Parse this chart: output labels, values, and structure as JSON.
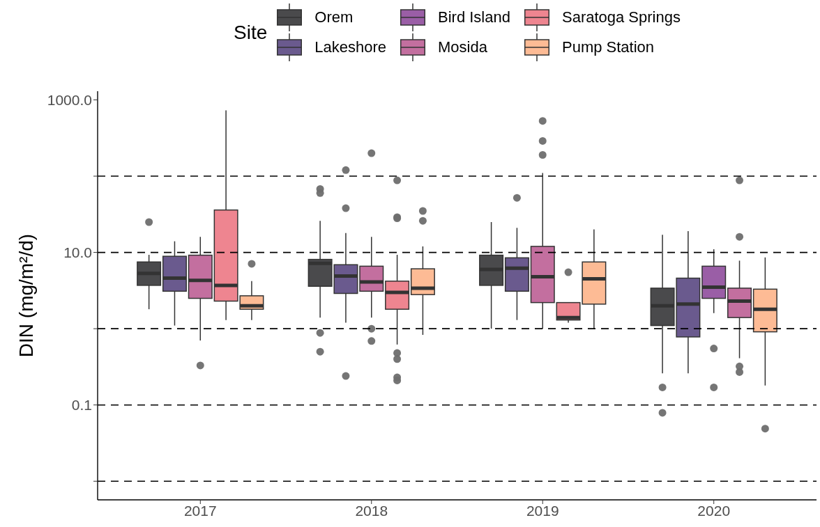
{
  "chart_data": {
    "type": "box",
    "categories": [
      "2017",
      "2018",
      "2019",
      "2020"
    ],
    "series": [
      {
        "name": "Orem",
        "color": "#4a4a4c",
        "boxes": [
          {
            "low": 1.8,
            "q1": 3.7,
            "median": 5.3,
            "q3": 7.5,
            "high": 9.3,
            "outliers": [
              25
            ]
          },
          {
            "low": 1.4,
            "q1": 3.6,
            "median": 7.2,
            "q3": 8.1,
            "high": 26,
            "outliers": [
              68,
              60,
              0.88,
              0.5
            ]
          },
          {
            "low": 1.0,
            "q1": 3.7,
            "median": 6.0,
            "q3": 9.2,
            "high": 25
          },
          {
            "low": 0.26,
            "q1": 1.1,
            "median": 2.0,
            "q3": 3.4,
            "high": 17,
            "outliers": [
              0.17,
              0.079
            ]
          }
        ]
      },
      {
        "name": "Lakeshore",
        "color": "#6a5a8e",
        "boxes": [
          {
            "low": 1.1,
            "q1": 3.1,
            "median": 4.6,
            "q3": 8.9,
            "high": 14
          },
          {
            "low": 1.2,
            "q1": 2.9,
            "median": 4.9,
            "q3": 6.9,
            "high": 18,
            "outliers": [
              120,
              38,
              0.24
            ]
          },
          {
            "low": 1.3,
            "q1": 3.1,
            "median": 6.2,
            "q3": 8.5,
            "high": 21,
            "outliers": [
              52
            ]
          },
          {
            "low": 0.26,
            "q1": 0.78,
            "median": 2.1,
            "q3": 4.6,
            "high": 19
          }
        ]
      },
      {
        "name": "Bird Island",
        "color": "#9a5ea6",
        "boxes": [
          null,
          null,
          null,
          {
            "low": 1.6,
            "q1": 2.5,
            "median": 3.5,
            "q3": 6.6,
            "high": 11,
            "outliers": [
              0.55,
              0.17
            ]
          }
        ]
      },
      {
        "name": "Mosida",
        "color": "#c36f9f",
        "boxes": [
          {
            "low": 0.7,
            "q1": 2.5,
            "median": 4.3,
            "q3": 9.2,
            "high": 16,
            "outliers": [
              0.33
            ]
          },
          {
            "low": 1.4,
            "q1": 3.1,
            "median": 4.1,
            "q3": 6.6,
            "high": 16,
            "outliers": [
              200,
              1.0,
              0.69
            ]
          },
          {
            "low": 1.0,
            "q1": 2.2,
            "median": 4.8,
            "q3": 12,
            "high": 110,
            "outliers": [
              530,
              290,
              190
            ]
          },
          {
            "low": 0.41,
            "q1": 1.4,
            "median": 2.3,
            "q3": 3.4,
            "high": 7.8,
            "outliers": [
              88,
              16,
              0.32,
              0.27
            ]
          }
        ]
      },
      {
        "name": "Saratoga Springs",
        "color": "#ee8590",
        "boxes": [
          {
            "low": 1.3,
            "q1": 2.3,
            "median": 3.7,
            "q3": 36,
            "high": 730
          },
          {
            "low": 0.62,
            "q1": 1.8,
            "median": 3.0,
            "q3": 4.2,
            "high": 9.3,
            "outliers": [
              88,
              29,
              28,
              0.48,
              0.4,
              0.23,
              0.21
            ]
          },
          {
            "low": 1.2,
            "q1": 1.3,
            "median": 1.4,
            "q3": 2.2,
            "high": 2.2,
            "outliers": [
              5.5
            ]
          },
          null
        ]
      },
      {
        "name": "Pump Station",
        "color": "#fdbb95",
        "boxes": [
          {
            "low": 1.3,
            "q1": 1.8,
            "median": 2.0,
            "q3": 2.7,
            "high": 4.2,
            "outliers": [
              7.1
            ]
          },
          {
            "low": 0.83,
            "q1": 2.8,
            "median": 3.4,
            "q3": 6.1,
            "high": 12,
            "outliers": [
              35,
              26
            ]
          },
          {
            "low": 1.0,
            "q1": 2.1,
            "median": 4.5,
            "q3": 7.5,
            "high": 20
          },
          {
            "low": 0.18,
            "q1": 0.91,
            "median": 1.8,
            "q3": 3.3,
            "high": 8.6,
            "outliers": [
              0.049
            ]
          }
        ]
      }
    ],
    "ylabel": "DIN (mg/m²/d)",
    "legend_title": "Site",
    "legend": "top",
    "log": true,
    "ylim": [
      0.0057,
      1300
    ],
    "yticks": [
      {
        "value": 0.01,
        "label": null
      },
      0.1,
      {
        "value": 1,
        "label": null
      },
      {
        "value": 10,
        "label": "10.0"
      },
      {
        "value": 100,
        "label": null
      },
      {
        "value": 1000,
        "label": "1000.0"
      }
    ],
    "ref_lines": [
      {
        "axis": "y",
        "value": 0.01,
        "color": "#000000",
        "line_style": "dashed"
      },
      {
        "axis": "y",
        "value": 0.1,
        "color": "#000000",
        "line_style": "dashed"
      },
      {
        "axis": "y",
        "value": 1,
        "color": "#000000",
        "line_style": "dashed"
      },
      {
        "axis": "y",
        "value": 10,
        "color": "#000000",
        "line_style": "dashed"
      },
      {
        "axis": "y",
        "value": 100,
        "color": "#000000",
        "line_style": "dashed"
      }
    ]
  }
}
